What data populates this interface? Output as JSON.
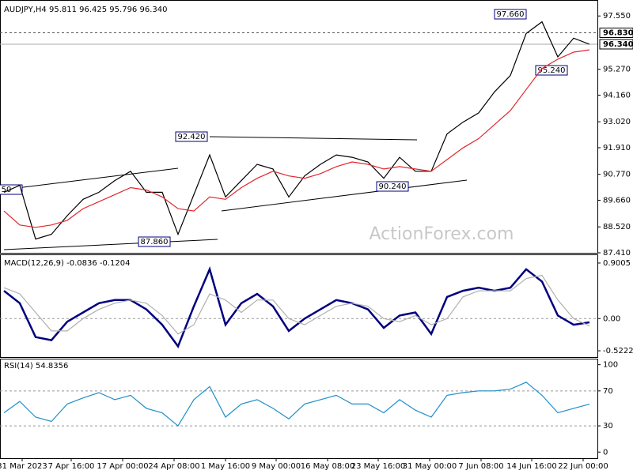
{
  "chart_data": [
    {
      "type": "line",
      "title": "AUDJPY,H4  95.811 96.425 95.796 96.340",
      "series": [
        {
          "color": "#000000",
          "values": [
            90.0,
            90.3,
            88.0,
            88.2,
            89.0,
            89.7,
            90.0,
            90.5,
            90.9,
            90.0,
            90.0,
            88.2,
            89.9,
            91.6,
            89.8,
            90.5,
            91.2,
            91.0,
            89.8,
            90.7,
            91.2,
            91.6,
            91.5,
            91.3,
            90.6,
            91.5,
            90.9,
            90.9,
            92.5,
            93.0,
            93.4,
            94.3,
            95.0,
            96.8,
            97.3,
            95.8,
            96.6,
            96.34
          ]
        },
        {
          "color": "#e0282e",
          "values": [
            89.2,
            88.6,
            88.5,
            88.6,
            88.8,
            89.3,
            89.6,
            89.9,
            90.2,
            90.1,
            89.8,
            89.3,
            89.2,
            89.8,
            89.7,
            90.2,
            90.6,
            90.9,
            90.7,
            90.6,
            90.8,
            91.1,
            91.3,
            91.2,
            91.0,
            91.1,
            91.0,
            90.9,
            91.4,
            91.9,
            92.3,
            92.9,
            93.5,
            94.4,
            95.3,
            95.7,
            96.0,
            96.1
          ]
        }
      ],
      "xlim": [
        -0.25,
        37.5
      ],
      "ylim": [
        87.41,
        98.2
      ],
      "yticks": [
        {
          "value": 97.55,
          "label": "97.550"
        },
        {
          "value": 95.27,
          "label": "95.270"
        },
        {
          "value": 94.16,
          "label": "94.160"
        },
        {
          "value": 93.02,
          "label": "93.020"
        },
        {
          "value": 91.91,
          "label": "91.910"
        },
        {
          "value": 90.77,
          "label": "90.770"
        },
        {
          "value": 89.66,
          "label": "89.660"
        },
        {
          "value": 88.52,
          "label": "88.520"
        },
        {
          "value": 87.41,
          "label": "87.410"
        }
      ],
      "price_lines": [
        {
          "value": 96.83,
          "label": "96.830"
        },
        {
          "value": 96.34,
          "label": "96.340"
        }
      ],
      "annotations": [
        "97.660",
        "92.420",
        "90.240",
        "87.860",
        "95.240",
        "50"
      ],
      "watermark": "ActionForex.com"
    },
    {
      "type": "line",
      "title": "MACD(12,26,9) -0.0836 -0.1204",
      "series": [
        {
          "color": "#000080",
          "values": [
            0.45,
            0.25,
            -0.3,
            -0.35,
            -0.05,
            0.1,
            0.25,
            0.3,
            0.3,
            0.15,
            -0.1,
            -0.45,
            0.2,
            0.8,
            -0.1,
            0.25,
            0.4,
            0.2,
            -0.2,
            0.0,
            0.15,
            0.3,
            0.25,
            0.15,
            -0.15,
            0.05,
            0.1,
            -0.25,
            0.35,
            0.45,
            0.5,
            0.45,
            0.5,
            0.8,
            0.6,
            0.05,
            -0.1,
            -0.06
          ]
        },
        {
          "color": "#b0b0b0",
          "values": [
            0.5,
            0.4,
            0.1,
            -0.2,
            -0.2,
            0.0,
            0.15,
            0.25,
            0.3,
            0.25,
            0.05,
            -0.25,
            -0.1,
            0.4,
            0.3,
            0.1,
            0.3,
            0.3,
            0.0,
            -0.1,
            0.05,
            0.2,
            0.25,
            0.2,
            0.0,
            -0.05,
            0.05,
            -0.1,
            0.0,
            0.35,
            0.45,
            0.45,
            0.45,
            0.65,
            0.7,
            0.3,
            0.0,
            -0.12
          ]
        }
      ],
      "xlim": [
        -0.25,
        37.5
      ],
      "ylim": [
        -0.624,
        1.028
      ],
      "yticks": [
        0.9005,
        {
          "value": 0,
          "label": "0.00"
        },
        -0.5222
      ]
    },
    {
      "type": "line",
      "title": "RSI(14) 54.8356",
      "series": [
        {
          "color": "#1f8fc8",
          "values": [
            45,
            58,
            40,
            35,
            55,
            62,
            68,
            60,
            65,
            50,
            45,
            30,
            60,
            75,
            40,
            55,
            60,
            50,
            38,
            55,
            60,
            65,
            55,
            55,
            45,
            60,
            48,
            40,
            65,
            68,
            70,
            70,
            72,
            80,
            65,
            45,
            50,
            54.84
          ]
        }
      ],
      "xlim": [
        -0.25,
        37.5
      ],
      "ylim": [
        -7,
        106
      ],
      "yticks": [
        100,
        70,
        30,
        0
      ],
      "xticks": [
        {
          "value": 1.15,
          "label": "31 Mar 2023"
        },
        {
          "value": 4.25,
          "label": "7 Apr 16:00"
        },
        {
          "value": 7.5,
          "label": "17 Apr 00:00"
        },
        {
          "value": 10.75,
          "label": "24 Apr 08:00"
        },
        {
          "value": 14,
          "label": "1 May 16:00"
        },
        {
          "value": 17.2,
          "label": "9 May 00:00"
        },
        {
          "value": 20.45,
          "label": "16 May 08:00"
        },
        {
          "value": 23.65,
          "label": "23 May 16:00"
        },
        {
          "value": 26.9,
          "label": "31 May 00:00"
        },
        {
          "value": 30.15,
          "label": "7 Jun 08:00"
        },
        {
          "value": 33.35,
          "label": "14 Jun 16:00"
        },
        {
          "value": 36.6,
          "label": "22 Jun 00:00"
        }
      ]
    }
  ]
}
